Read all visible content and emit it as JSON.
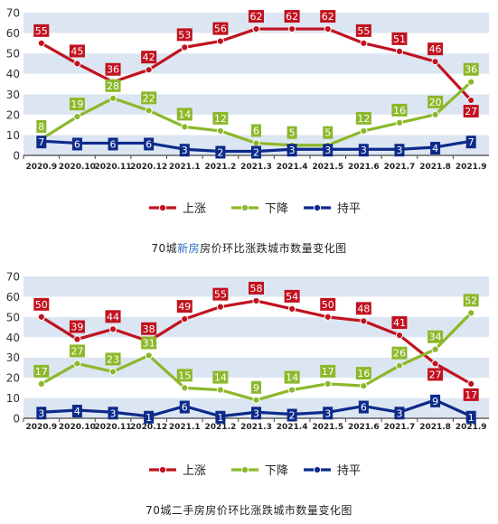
{
  "colors": {
    "up": "#c1121f",
    "down": "#8cb82b",
    "flat": "#0d2a8a",
    "band": "#dce6f2",
    "highlight": "#2a6fc9"
  },
  "chart_data": [
    {
      "type": "line",
      "categories": [
        "2020.9",
        "2020.10",
        "2020.11",
        "2020.12",
        "2021.1",
        "2021.2",
        "2021.3",
        "2021.4",
        "2021.5",
        "2021.6",
        "2021.7",
        "2021.8",
        "2021.9"
      ],
      "ylim": [
        0,
        70
      ],
      "yticks": [
        0,
        10,
        20,
        30,
        40,
        50,
        60,
        70
      ],
      "grid": "alternating horizontal bands",
      "legend_position": "bottom",
      "series": [
        {
          "key": "up",
          "name": "上涨",
          "values": [
            55,
            45,
            36,
            42,
            53,
            56,
            62,
            62,
            62,
            55,
            51,
            46,
            27
          ]
        },
        {
          "key": "down",
          "name": "下降",
          "values": [
            8,
            19,
            28,
            22,
            14,
            12,
            6,
            5,
            5,
            12,
            16,
            20,
            36
          ]
        },
        {
          "key": "flat",
          "name": "持平",
          "values": [
            7,
            6,
            6,
            6,
            3,
            2,
            2,
            3,
            3,
            3,
            3,
            4,
            7
          ]
        }
      ],
      "caption": {
        "prefix": "70城",
        "highlight": "新房",
        "suffix": "房价环比涨跌城市数量变化图"
      }
    },
    {
      "type": "line",
      "categories": [
        "2020.9",
        "2020.10",
        "2020.11",
        "2020.12",
        "2021.1",
        "2021.2",
        "2021.3",
        "2021.4",
        "2021.5",
        "2021.6",
        "2021.7",
        "2021.8",
        "2021.9"
      ],
      "ylim": [
        0,
        70
      ],
      "yticks": [
        0,
        10,
        20,
        30,
        40,
        50,
        60,
        70
      ],
      "grid": "alternating horizontal bands",
      "legend_position": "bottom",
      "series": [
        {
          "key": "up",
          "name": "上涨",
          "values": [
            50,
            39,
            44,
            38,
            49,
            55,
            58,
            54,
            50,
            48,
            41,
            27,
            17
          ]
        },
        {
          "key": "down",
          "name": "下降",
          "values": [
            17,
            27,
            23,
            31,
            15,
            14,
            9,
            14,
            17,
            16,
            26,
            34,
            52
          ]
        },
        {
          "key": "flat",
          "name": "持平",
          "values": [
            3,
            4,
            3,
            1,
            6,
            1,
            3,
            2,
            3,
            6,
            3,
            9,
            1
          ]
        }
      ],
      "caption": {
        "prefix": "70城二手房房价环比涨跌城市数量变化图",
        "highlight": "",
        "suffix": ""
      }
    }
  ]
}
